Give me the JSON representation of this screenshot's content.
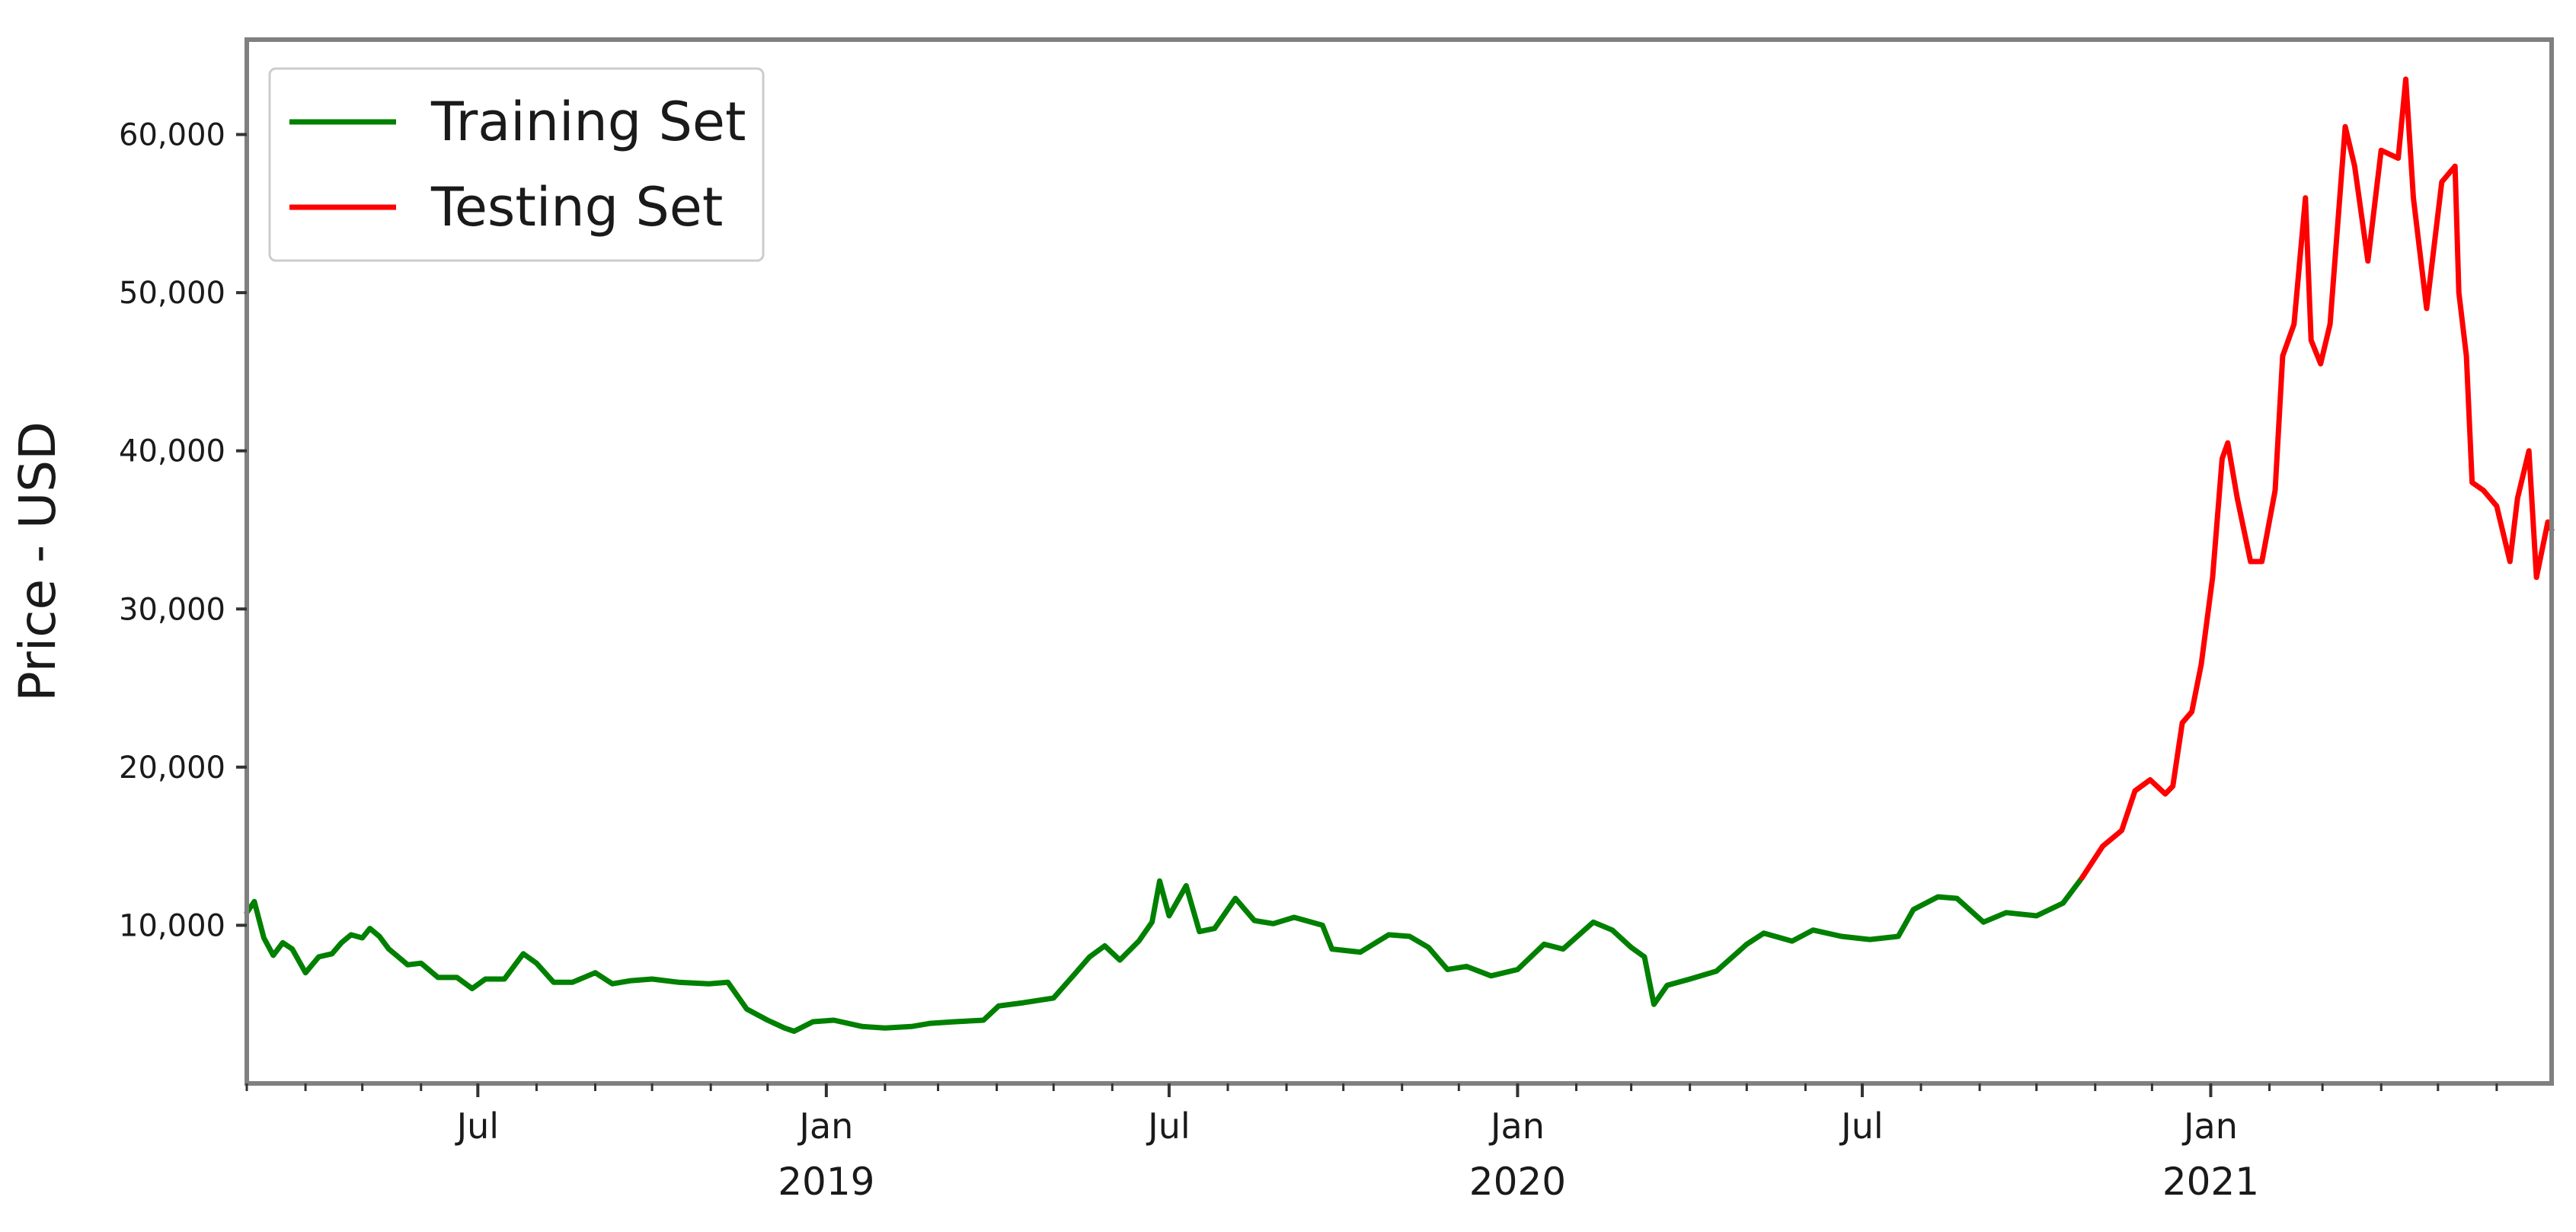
{
  "chart_data": {
    "type": "line",
    "title": "",
    "xlabel": "",
    "ylabel": "Price - USD",
    "x_range": [
      "2018-03-01",
      "2021-06-30"
    ],
    "ylim": [
      0,
      66000
    ],
    "y_ticks": [
      {
        "value": 10000,
        "label": "10,000"
      },
      {
        "value": 20000,
        "label": "20,000"
      },
      {
        "value": 30000,
        "label": "30,000"
      },
      {
        "value": 40000,
        "label": "40,000"
      },
      {
        "value": 50000,
        "label": "50,000"
      },
      {
        "value": 60000,
        "label": "60,000"
      }
    ],
    "x_major_ticks": [
      {
        "date": "2018-07-01",
        "label": "Jul",
        "year": ""
      },
      {
        "date": "2019-01-01",
        "label": "Jan",
        "year": "2019"
      },
      {
        "date": "2019-07-01",
        "label": "Jul",
        "year": ""
      },
      {
        "date": "2020-01-01",
        "label": "Jan",
        "year": "2020"
      },
      {
        "date": "2020-07-01",
        "label": "Jul",
        "year": ""
      },
      {
        "date": "2021-01-01",
        "label": "Jan",
        "year": "2021"
      }
    ],
    "grid": false,
    "legend_position": "top-left",
    "series": [
      {
        "name": "Training Set",
        "color": "#008000",
        "points": [
          [
            "2018-03-01",
            10800
          ],
          [
            "2018-03-05",
            11500
          ],
          [
            "2018-03-10",
            9200
          ],
          [
            "2018-03-15",
            8100
          ],
          [
            "2018-03-20",
            8900
          ],
          [
            "2018-03-25",
            8500
          ],
          [
            "2018-04-01",
            7000
          ],
          [
            "2018-04-08",
            8000
          ],
          [
            "2018-04-15",
            8200
          ],
          [
            "2018-04-20",
            8900
          ],
          [
            "2018-04-25",
            9400
          ],
          [
            "2018-05-01",
            9200
          ],
          [
            "2018-05-05",
            9800
          ],
          [
            "2018-05-10",
            9300
          ],
          [
            "2018-05-15",
            8500
          ],
          [
            "2018-05-25",
            7500
          ],
          [
            "2018-06-01",
            7600
          ],
          [
            "2018-06-10",
            6700
          ],
          [
            "2018-06-20",
            6700
          ],
          [
            "2018-06-28",
            6000
          ],
          [
            "2018-07-05",
            6600
          ],
          [
            "2018-07-15",
            6600
          ],
          [
            "2018-07-25",
            8200
          ],
          [
            "2018-08-01",
            7600
          ],
          [
            "2018-08-10",
            6400
          ],
          [
            "2018-08-20",
            6400
          ],
          [
            "2018-09-01",
            7000
          ],
          [
            "2018-09-10",
            6300
          ],
          [
            "2018-09-20",
            6500
          ],
          [
            "2018-10-01",
            6600
          ],
          [
            "2018-10-15",
            6400
          ],
          [
            "2018-10-31",
            6300
          ],
          [
            "2018-11-10",
            6400
          ],
          [
            "2018-11-20",
            4700
          ],
          [
            "2018-12-01",
            4000
          ],
          [
            "2018-12-10",
            3500
          ],
          [
            "2018-12-15",
            3300
          ],
          [
            "2018-12-25",
            3900
          ],
          [
            "2019-01-05",
            4000
          ],
          [
            "2019-01-20",
            3600
          ],
          [
            "2019-02-01",
            3500
          ],
          [
            "2019-02-15",
            3600
          ],
          [
            "2019-02-25",
            3800
          ],
          [
            "2019-03-10",
            3900
          ],
          [
            "2019-03-25",
            4000
          ],
          [
            "2019-04-02",
            4900
          ],
          [
            "2019-04-15",
            5100
          ],
          [
            "2019-05-01",
            5400
          ],
          [
            "2019-05-12",
            6900
          ],
          [
            "2019-05-20",
            8000
          ],
          [
            "2019-05-28",
            8700
          ],
          [
            "2019-06-05",
            7800
          ],
          [
            "2019-06-15",
            9000
          ],
          [
            "2019-06-22",
            10200
          ],
          [
            "2019-06-26",
            12800
          ],
          [
            "2019-07-01",
            10600
          ],
          [
            "2019-07-10",
            12500
          ],
          [
            "2019-07-17",
            9600
          ],
          [
            "2019-07-25",
            9800
          ],
          [
            "2019-08-05",
            11700
          ],
          [
            "2019-08-15",
            10300
          ],
          [
            "2019-08-25",
            10100
          ],
          [
            "2019-09-05",
            10500
          ],
          [
            "2019-09-20",
            10000
          ],
          [
            "2019-09-25",
            8500
          ],
          [
            "2019-10-10",
            8300
          ],
          [
            "2019-10-25",
            9400
          ],
          [
            "2019-11-05",
            9300
          ],
          [
            "2019-11-15",
            8600
          ],
          [
            "2019-11-25",
            7200
          ],
          [
            "2019-12-05",
            7400
          ],
          [
            "2019-12-18",
            6800
          ],
          [
            "2020-01-01",
            7200
          ],
          [
            "2020-01-15",
            8800
          ],
          [
            "2020-01-25",
            8500
          ],
          [
            "2020-02-10",
            10200
          ],
          [
            "2020-02-20",
            9700
          ],
          [
            "2020-03-01",
            8600
          ],
          [
            "2020-03-08",
            8000
          ],
          [
            "2020-03-13",
            5000
          ],
          [
            "2020-03-20",
            6200
          ],
          [
            "2020-04-01",
            6600
          ],
          [
            "2020-04-15",
            7100
          ],
          [
            "2020-05-01",
            8800
          ],
          [
            "2020-05-10",
            9500
          ],
          [
            "2020-05-25",
            9000
          ],
          [
            "2020-06-05",
            9700
          ],
          [
            "2020-06-20",
            9300
          ],
          [
            "2020-07-05",
            9100
          ],
          [
            "2020-07-20",
            9300
          ],
          [
            "2020-07-28",
            11000
          ],
          [
            "2020-08-10",
            11800
          ],
          [
            "2020-08-20",
            11700
          ],
          [
            "2020-09-03",
            10200
          ],
          [
            "2020-09-15",
            10800
          ],
          [
            "2020-10-01",
            10600
          ],
          [
            "2020-10-15",
            11400
          ],
          [
            "2020-10-25",
            13000
          ]
        ]
      },
      {
        "name": "Testing Set",
        "color": "#ff0000",
        "points": [
          [
            "2020-10-25",
            13000
          ],
          [
            "2020-11-05",
            15000
          ],
          [
            "2020-11-15",
            16000
          ],
          [
            "2020-11-22",
            18500
          ],
          [
            "2020-11-30",
            19200
          ],
          [
            "2020-12-08",
            18300
          ],
          [
            "2020-12-12",
            18800
          ],
          [
            "2020-12-17",
            22800
          ],
          [
            "2020-12-22",
            23500
          ],
          [
            "2020-12-27",
            26500
          ],
          [
            "2021-01-02",
            32000
          ],
          [
            "2021-01-07",
            39500
          ],
          [
            "2021-01-10",
            40500
          ],
          [
            "2021-01-15",
            37000
          ],
          [
            "2021-01-22",
            33000
          ],
          [
            "2021-01-28",
            33000
          ],
          [
            "2021-02-04",
            37500
          ],
          [
            "2021-02-08",
            46000
          ],
          [
            "2021-02-14",
            48000
          ],
          [
            "2021-02-20",
            56000
          ],
          [
            "2021-02-23",
            47000
          ],
          [
            "2021-02-28",
            45500
          ],
          [
            "2021-03-05",
            48000
          ],
          [
            "2021-03-13",
            60500
          ],
          [
            "2021-03-18",
            58000
          ],
          [
            "2021-03-25",
            52000
          ],
          [
            "2021-04-01",
            59000
          ],
          [
            "2021-04-10",
            58500
          ],
          [
            "2021-04-14",
            63500
          ],
          [
            "2021-04-18",
            56000
          ],
          [
            "2021-04-25",
            49000
          ],
          [
            "2021-05-03",
            57000
          ],
          [
            "2021-05-10",
            58000
          ],
          [
            "2021-05-12",
            50000
          ],
          [
            "2021-05-16",
            46000
          ],
          [
            "2021-05-19",
            38000
          ],
          [
            "2021-05-25",
            37500
          ],
          [
            "2021-06-01",
            36500
          ],
          [
            "2021-06-08",
            33000
          ],
          [
            "2021-06-12",
            37000
          ],
          [
            "2021-06-18",
            40000
          ],
          [
            "2021-06-22",
            32000
          ],
          [
            "2021-06-28",
            35500
          ],
          [
            "2021-06-30",
            35000
          ]
        ]
      }
    ]
  }
}
